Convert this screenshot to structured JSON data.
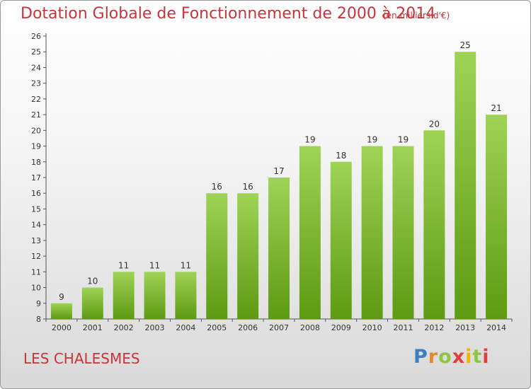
{
  "chart_data": {
    "type": "bar",
    "title": "Dotation Globale de Fonctionnement de 2000 à 2014",
    "subtitle": "(en milliers d'€)",
    "categories": [
      "2000",
      "2001",
      "2002",
      "2003",
      "2004",
      "2005",
      "2006",
      "2007",
      "2008",
      "2009",
      "2010",
      "2011",
      "2012",
      "2013",
      "2014"
    ],
    "values": [
      9,
      10,
      11,
      11,
      11,
      16,
      16,
      17,
      19,
      18,
      19,
      19,
      20,
      25,
      21
    ],
    "ylim": [
      8,
      26
    ],
    "yticks": [
      8,
      9,
      10,
      11,
      12,
      13,
      14,
      15,
      16,
      17,
      18,
      19,
      20,
      21,
      22,
      23,
      24,
      25,
      26
    ],
    "grid": false,
    "bar_color_top": "#9fd356",
    "bar_color_bottom": "#5e9a12"
  },
  "footer": {
    "commune": "LES CHALESMES",
    "logo": "Proxiti"
  }
}
